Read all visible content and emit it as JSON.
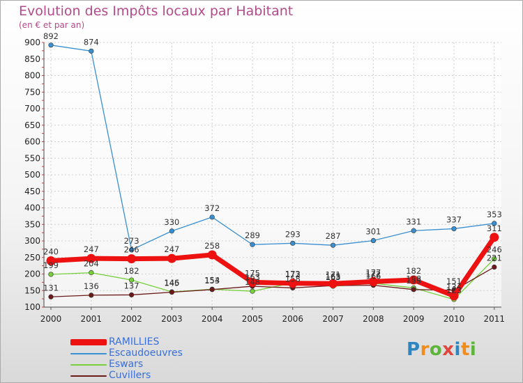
{
  "title": "Evolution des Impôts locaux par Habitant",
  "subtitle": "(en € et par an)",
  "logo": {
    "letters": [
      "P",
      "r",
      "o",
      "x",
      "i",
      "t",
      "i"
    ]
  },
  "chart_data": {
    "type": "line",
    "title": "Evolution des Impôts locaux par Habitant",
    "ylabel": "(en € et par an)",
    "xlabel": "",
    "ylim": [
      100,
      900
    ],
    "y_ticks": [
      "100",
      "150",
      "200",
      "250",
      "300",
      "350",
      "400",
      "450",
      "500",
      "550",
      "600",
      "650",
      "700",
      "750",
      "800",
      "850",
      "900"
    ],
    "categories": [
      "2000",
      "2001",
      "2002",
      "2003",
      "2004",
      "2005",
      "2006",
      "2007",
      "2008",
      "2009",
      "2010",
      "2011"
    ],
    "series": [
      {
        "name": "RAMILLIES",
        "color": "#ee1111",
        "values": [
          240,
          247,
          246,
          247,
          258,
          175,
          172,
          171,
          177,
          182,
          134,
          311
        ],
        "labels": [
          "240",
          "247",
          "246",
          "247",
          "258",
          "175",
          "172",
          "171",
          "177",
          "182",
          "134",
          "311"
        ]
      },
      {
        "name": "Escaudoeuvres",
        "color": "#3a8fd0",
        "values": [
          892,
          874,
          273,
          330,
          372,
          289,
          293,
          287,
          301,
          331,
          337,
          353
        ],
        "labels": [
          "892",
          "874",
          "273",
          "330",
          "372",
          "289",
          "293",
          "287",
          "301",
          "331",
          "337",
          "353"
        ]
      },
      {
        "name": "Eswars",
        "color": "#77d03a",
        "values": [
          199,
          204,
          182,
          146,
          154,
          148,
          173,
          163,
          172,
          158,
          123,
          246
        ],
        "labels": [
          "199",
          "204",
          "182",
          "146",
          "154",
          "148",
          "173",
          "163",
          "172",
          "158",
          "123",
          "246"
        ]
      },
      {
        "name": "Cuvillers",
        "color": "#6b1a1a",
        "values": [
          131,
          136,
          137,
          145,
          153,
          163,
          158,
          165,
          166,
          153,
          151,
          221
        ],
        "labels": [
          "131",
          "136",
          "137",
          "145",
          "153",
          "163",
          "158",
          "165",
          "166",
          "153",
          "151",
          "221"
        ]
      }
    ],
    "legend": [
      "RAMILLIES",
      "Escaudoeuvres",
      "Eswars",
      "Cuvillers"
    ],
    "legend_position": "bottom-left",
    "grid": true
  }
}
